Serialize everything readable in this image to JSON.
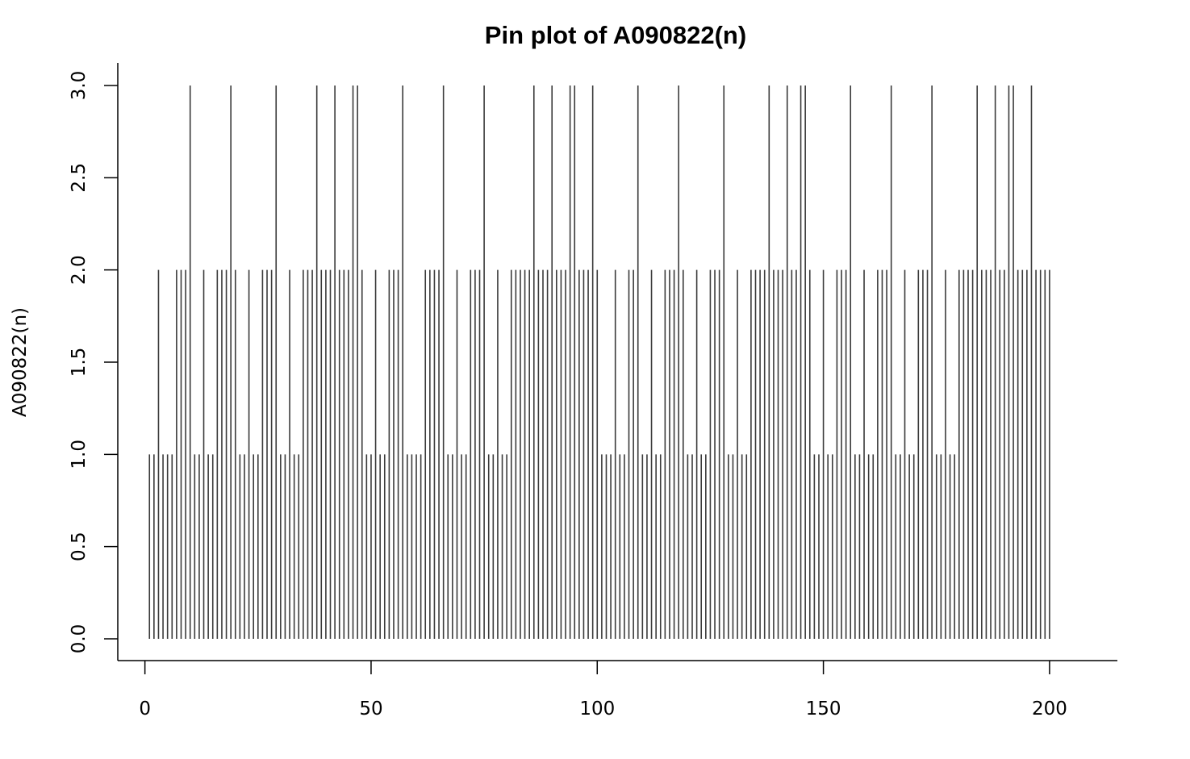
{
  "chart_data": {
    "type": "bar",
    "style": "pin",
    "title": "Pin plot of A090822(n)",
    "xlabel": "",
    "ylabel": "A090822(n)",
    "xlim": [
      -6,
      215
    ],
    "ylim": [
      0,
      3
    ],
    "x_ticks": [
      0,
      50,
      100,
      150,
      200
    ],
    "x_tick_labels": [
      "0",
      "50",
      "100",
      "150",
      "200"
    ],
    "y_ticks": [
      0,
      0.5,
      1,
      1.5,
      2,
      2.5,
      3
    ],
    "y_tick_labels": [
      "0.0",
      "0.5",
      "1.0",
      "1.5",
      "2.0",
      "2.5",
      "3.0"
    ],
    "grid": false,
    "legend": "none",
    "pin_color": "#3a3a3a",
    "x_start": 1,
    "values": [
      1,
      1,
      2,
      1,
      1,
      1,
      2,
      2,
      2,
      3,
      1,
      1,
      2,
      1,
      1,
      2,
      2,
      2,
      3,
      2,
      1,
      1,
      2,
      1,
      1,
      2,
      2,
      2,
      3,
      1,
      1,
      2,
      1,
      1,
      2,
      2,
      2,
      3,
      2,
      2,
      2,
      3,
      2,
      2,
      2,
      3,
      3,
      2,
      1,
      1,
      2,
      1,
      1,
      2,
      2,
      2,
      3,
      1,
      1,
      1,
      1,
      2,
      2,
      2,
      2,
      3,
      1,
      1,
      2,
      1,
      1,
      2,
      2,
      2,
      3,
      1,
      1,
      2,
      1,
      1,
      2,
      2,
      2,
      2,
      2,
      3,
      2,
      2,
      2,
      3,
      2,
      2,
      2,
      3,
      3,
      2,
      2,
      2,
      3,
      2,
      1,
      1,
      1,
      2,
      1,
      1,
      2,
      2,
      3,
      1,
      1,
      2,
      1,
      1,
      2,
      2,
      2,
      3,
      2,
      1,
      1,
      2,
      1,
      1,
      2,
      2,
      2,
      3,
      1,
      1,
      2,
      1,
      1,
      2,
      2,
      2,
      2,
      3,
      2,
      2,
      2,
      3,
      2,
      2,
      3,
      3,
      2,
      1,
      1,
      2,
      1,
      1,
      2,
      2,
      2,
      3,
      1,
      1,
      2,
      1,
      1,
      2,
      2,
      2,
      3,
      1,
      1,
      2,
      1,
      1,
      2,
      2,
      2,
      3,
      1,
      1,
      2,
      1,
      1,
      2,
      2,
      2,
      2,
      3,
      2,
      2,
      2,
      3,
      2,
      2,
      3,
      3,
      2,
      2,
      2,
      3,
      2,
      2,
      2,
      2
    ]
  }
}
